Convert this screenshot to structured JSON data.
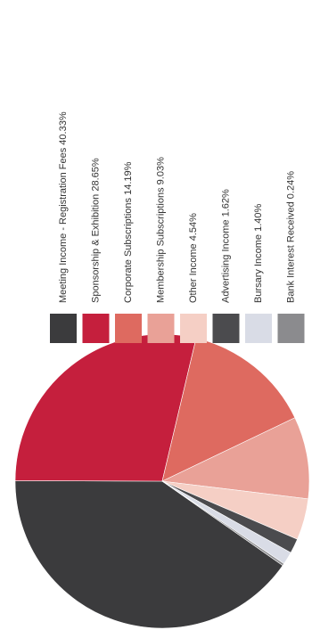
{
  "chart_data": {
    "type": "pie",
    "categories": [
      "Meeting Income - Registration Fees",
      "Sponsorship & Exhibition",
      "Corporate Subscriptions",
      "Membership Subscriptions",
      "Other Income",
      "Advertising Income",
      "Bursary Income",
      "Bank Interest Received"
    ],
    "values": [
      40.33,
      28.65,
      14.19,
      9.03,
      4.54,
      1.62,
      1.4,
      0.24
    ],
    "value_labels": [
      "40.33%",
      "28.65%",
      "14.19%",
      "9.03%",
      "4.54%",
      "1.62%",
      "1.40%",
      "0.24%"
    ],
    "colors": [
      "#3b3b3d",
      "#c51f3d",
      "#de6a60",
      "#e9a197",
      "#f5cfc5",
      "#4b4b4e",
      "#d9dce6",
      "#8b8b8e"
    ]
  }
}
